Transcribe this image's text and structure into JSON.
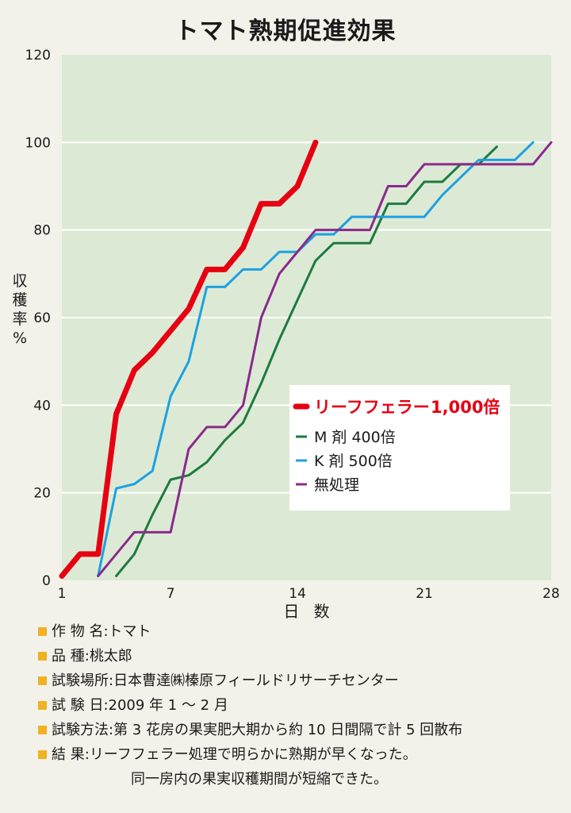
{
  "title": "トマト熟期促進効果",
  "chart_data": {
    "type": "line",
    "xlabel": "日 数",
    "ylabel": "収穫率%",
    "xlim": [
      1,
      28
    ],
    "ylim": [
      0,
      120
    ],
    "xticks": [
      1,
      7,
      14,
      21,
      28
    ],
    "yticks": [
      0,
      20,
      40,
      60,
      80,
      100,
      120
    ],
    "grid": true,
    "legend_position": "center-right",
    "background_color": "#dcead5",
    "series": [
      {
        "name": "リーフフェラー1,000倍",
        "color": "#e60012",
        "x": [
          1,
          2,
          3,
          4,
          5,
          6,
          7,
          8,
          9,
          10,
          11,
          12,
          13,
          14,
          15
        ],
        "y": [
          1,
          6,
          6,
          38,
          48,
          52,
          57,
          62,
          71,
          71,
          76,
          86,
          86,
          90,
          100
        ]
      },
      {
        "name": "M 剤 400倍",
        "color": "#1e7a3e",
        "x": [
          4,
          5,
          6,
          7,
          8,
          9,
          10,
          11,
          12,
          13,
          14,
          15,
          16,
          17,
          18,
          19,
          20,
          21,
          22,
          23,
          24,
          25
        ],
        "y": [
          1,
          6,
          15,
          23,
          24,
          27,
          32,
          36,
          45,
          55,
          64,
          73,
          77,
          77,
          77,
          86,
          86,
          91,
          91,
          95,
          95,
          99
        ]
      },
      {
        "name": "K 剤 500倍",
        "color": "#1ea0e1",
        "x": [
          3,
          4,
          5,
          6,
          7,
          8,
          9,
          10,
          11,
          12,
          13,
          14,
          15,
          16,
          17,
          18,
          19,
          20,
          21,
          22,
          23,
          24,
          25,
          26,
          27
        ],
        "y": [
          1,
          21,
          22,
          25,
          42,
          50,
          67,
          67,
          71,
          71,
          75,
          75,
          79,
          79,
          83,
          83,
          83,
          83,
          83,
          88,
          92,
          96,
          96,
          96,
          100
        ]
      },
      {
        "name": "無処理",
        "color": "#8a2a8c",
        "x": [
          3,
          4,
          5,
          6,
          7,
          8,
          9,
          10,
          11,
          12,
          13,
          14,
          15,
          16,
          17,
          18,
          19,
          20,
          21,
          22,
          23,
          24,
          25,
          26,
          27,
          28
        ],
        "y": [
          1,
          6,
          11,
          11,
          11,
          30,
          35,
          35,
          40,
          60,
          70,
          75,
          80,
          80,
          80,
          80,
          90,
          90,
          95,
          95,
          95,
          95,
          95,
          95,
          95,
          100
        ]
      }
    ]
  },
  "legend": [
    {
      "main": "リーフフェラー",
      "suffix": "1,000倍"
    },
    {
      "label": "M 剤 400倍"
    },
    {
      "label": "K 剤 500倍"
    },
    {
      "label": "無処理"
    }
  ],
  "notes": [
    {
      "label": "作 物 名",
      "sep": ":",
      "value": "トマト"
    },
    {
      "label": "品 種",
      "sep": ":",
      "value": "桃太郎"
    },
    {
      "label": "試験場所",
      "sep": ":",
      "value": "日本曹達㈱榛原フィールドリサーチセンター"
    },
    {
      "label": "試 験 日",
      "sep": ":",
      "value": "2009 年 1 ～ 2 月"
    },
    {
      "label": "試験方法",
      "sep": ":",
      "value": "第 3 花房の果実肥大期から約 10 日間隔で計 5 回散布"
    },
    {
      "label": "結 果",
      "sep": ":",
      "value": "リーフフェラー処理で明らかに熟期が早くなった。"
    }
  ],
  "notes_continuation": "同一房内の果実収穫期間が短縮できた。",
  "colors": {
    "bullet": "#f0b223",
    "page_bg": "#f3f2ea"
  }
}
